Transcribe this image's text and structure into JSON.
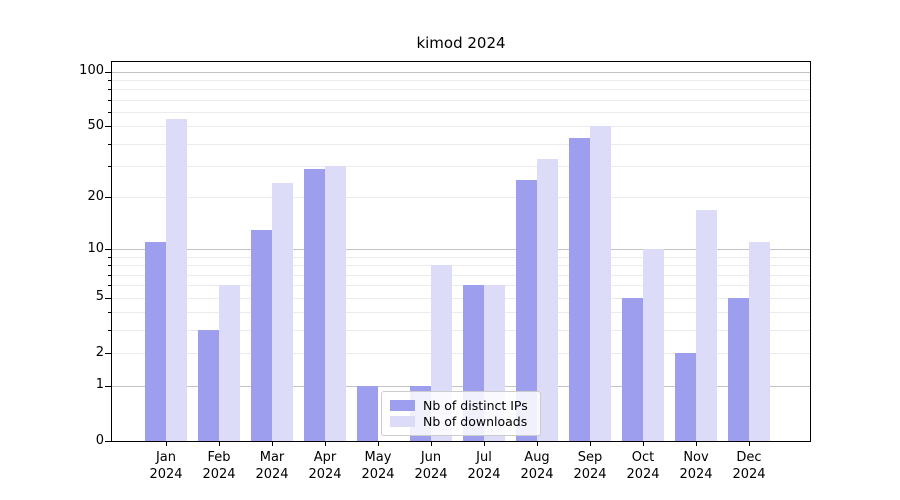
{
  "title": "kimod 2024",
  "chart_data": {
    "type": "bar",
    "title": "kimod 2024",
    "categories": [
      "Jan",
      "Feb",
      "Mar",
      "Apr",
      "May",
      "Jun",
      "Jul",
      "Aug",
      "Sep",
      "Oct",
      "Nov",
      "Dec"
    ],
    "x_year": "2024",
    "series": [
      {
        "name": "Nb of distinct IPs",
        "color": "#9e9eef",
        "values": [
          11,
          3,
          13,
          29,
          1,
          1,
          6,
          25,
          43,
          5,
          2,
          5
        ]
      },
      {
        "name": "Nb of downloads",
        "color": "#dcdcf9",
        "values": [
          55,
          6,
          24,
          30,
          0,
          8,
          6,
          33,
          50,
          10,
          17,
          11
        ]
      }
    ],
    "yscale": "log1p",
    "ylim": [
      0,
      113
    ],
    "y_tick_labels": [
      0,
      1,
      2,
      5,
      10,
      20,
      50,
      100
    ],
    "y_major_gridlines": [
      1,
      10,
      100
    ],
    "y_minor_gridlines": [
      2,
      3,
      4,
      5,
      6,
      7,
      8,
      9,
      20,
      30,
      40,
      50,
      60,
      70,
      80,
      90
    ],
    "grid": true,
    "legend_position": "lower center"
  }
}
